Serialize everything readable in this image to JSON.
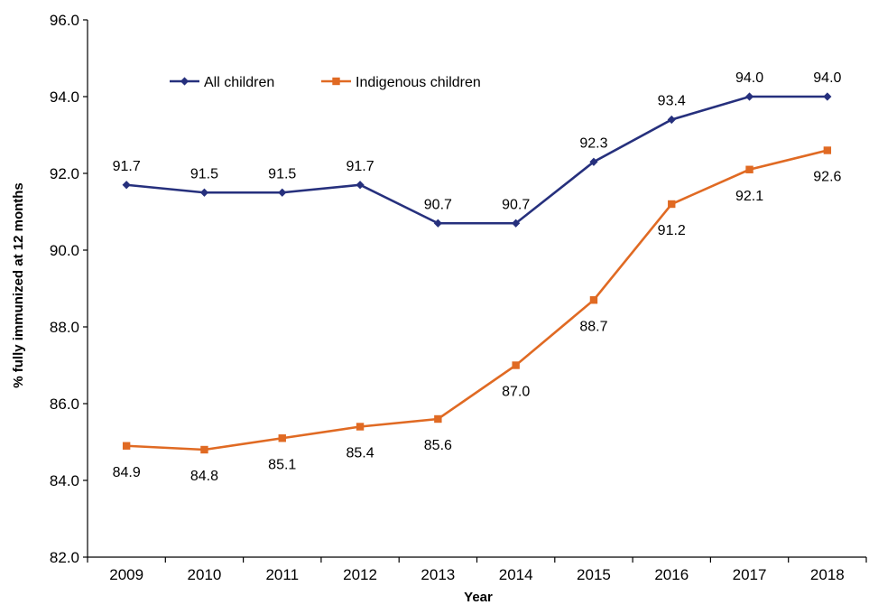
{
  "chart_data": {
    "type": "line",
    "title": "",
    "xlabel": "Year",
    "ylabel": "% fully immunized at 12 months",
    "categories": [
      "2009",
      "2010",
      "2011",
      "2012",
      "2013",
      "2014",
      "2015",
      "2016",
      "2017",
      "2018"
    ],
    "ylim": [
      82.0,
      96.0
    ],
    "yticks": [
      "82.0",
      "84.0",
      "86.0",
      "88.0",
      "90.0",
      "92.0",
      "94.0",
      "96.0"
    ],
    "grid": false,
    "legend_position": "top-left",
    "series": [
      {
        "name": "All children",
        "color": "#26307d",
        "marker": "diamond",
        "values": [
          91.7,
          91.5,
          91.5,
          91.7,
          90.7,
          90.7,
          92.3,
          93.4,
          94.0,
          94.0
        ],
        "labels": [
          "91.7",
          "91.5",
          "91.5",
          "91.7",
          "90.7",
          "90.7",
          "92.3",
          "93.4",
          "94.0",
          "94.0"
        ]
      },
      {
        "name": "Indigenous children",
        "color": "#e06a23",
        "marker": "square",
        "values": [
          84.9,
          84.8,
          85.1,
          85.4,
          85.6,
          87.0,
          88.7,
          91.2,
          92.1,
          92.6
        ],
        "labels": [
          "84.9",
          "84.8",
          "85.1",
          "85.4",
          "85.6",
          "87.0",
          "88.7",
          "91.2",
          "92.1",
          "92.6"
        ]
      }
    ]
  }
}
